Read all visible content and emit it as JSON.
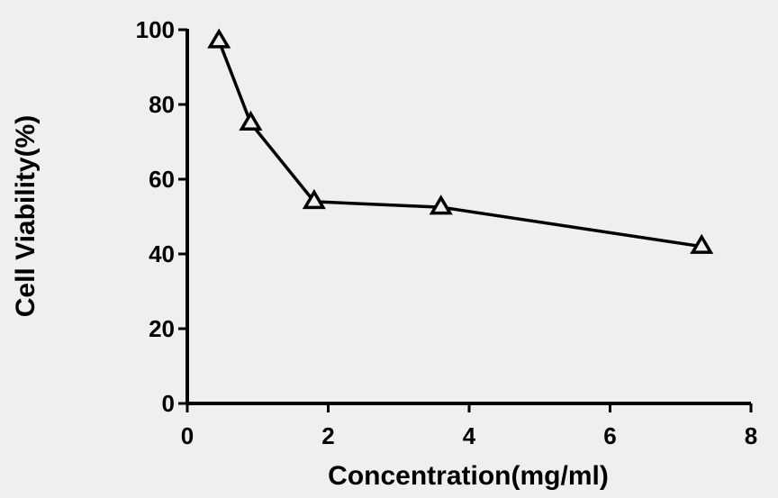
{
  "chart_data": {
    "type": "line",
    "title": "",
    "xlabel": "Concentration(mg/ml)",
    "ylabel": "Cell Viability(%)",
    "xlim": [
      0,
      8
    ],
    "ylim": [
      0,
      100
    ],
    "xticks": [
      0,
      2,
      4,
      6,
      8
    ],
    "yticks": [
      0,
      20,
      40,
      60,
      80,
      100
    ],
    "grid": false,
    "marker": "open-triangle",
    "series": [
      {
        "x": [
          0.45,
          0.9,
          1.8,
          3.6,
          7.3
        ],
        "y": [
          97,
          75,
          54,
          52.5,
          42
        ]
      }
    ],
    "colors": {
      "line": "#000000",
      "background": "#efefef"
    }
  }
}
